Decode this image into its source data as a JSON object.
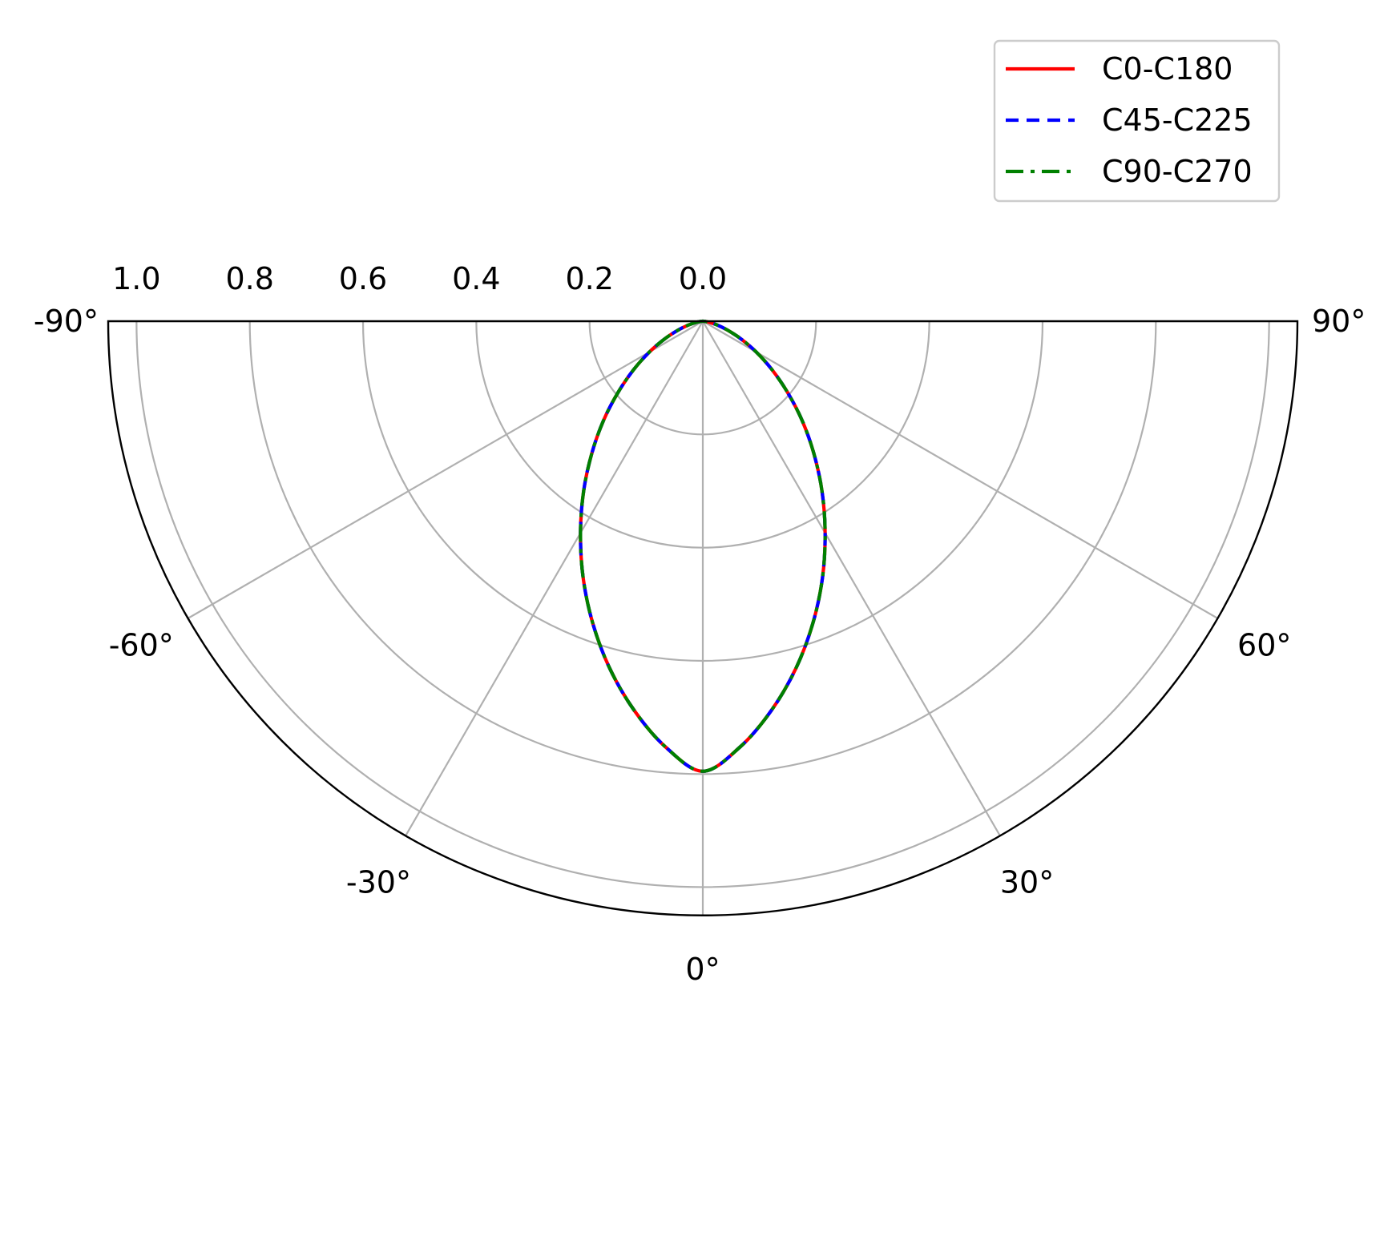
{
  "chart_data": {
    "type": "polar",
    "title": "",
    "theta_range_deg": [
      -90,
      90
    ],
    "theta_zero_location": "bottom",
    "r_range": [
      0,
      1.05
    ],
    "r_ticks": [
      0.0,
      0.2,
      0.4,
      0.6,
      0.8,
      1.0
    ],
    "r_tick_labels": [
      "0.0",
      "0.2",
      "0.4",
      "0.6",
      "0.8",
      "1.0"
    ],
    "theta_ticks_deg": [
      -90,
      -60,
      -30,
      0,
      30,
      60,
      90
    ],
    "theta_tick_labels": [
      "-90°",
      "-60°",
      "-30°",
      "0°",
      "30°",
      "60°",
      "90°"
    ],
    "grid": true,
    "legend": {
      "position": "top-right",
      "entries": [
        "C0-C180",
        "C45-C225",
        "C90-C270"
      ]
    },
    "theta_deg": [
      -90,
      -85,
      -80,
      -75,
      -70,
      -65,
      -60,
      -55,
      -50,
      -45,
      -40,
      -35,
      -30,
      -25,
      -20,
      -15,
      -10,
      -5,
      0,
      5,
      10,
      15,
      20,
      25,
      30,
      35,
      40,
      45,
      50,
      55,
      60,
      65,
      70,
      75,
      80,
      85,
      90
    ],
    "series": [
      {
        "name": "C0-C180",
        "color": "#ff0000",
        "style": "solid",
        "r": [
          0.0,
          0.003,
          0.012,
          0.027,
          0.047,
          0.075,
          0.109,
          0.149,
          0.195,
          0.248,
          0.305,
          0.367,
          0.432,
          0.5,
          0.568,
          0.635,
          0.698,
          0.755,
          0.795,
          0.755,
          0.698,
          0.635,
          0.568,
          0.5,
          0.432,
          0.367,
          0.305,
          0.248,
          0.195,
          0.149,
          0.109,
          0.075,
          0.047,
          0.027,
          0.012,
          0.003,
          0.0
        ]
      },
      {
        "name": "C45-C225",
        "color": "#0000ff",
        "style": "dashed",
        "r": [
          0.0,
          0.003,
          0.012,
          0.027,
          0.047,
          0.075,
          0.109,
          0.149,
          0.195,
          0.248,
          0.305,
          0.367,
          0.432,
          0.5,
          0.568,
          0.635,
          0.698,
          0.755,
          0.795,
          0.755,
          0.698,
          0.635,
          0.568,
          0.5,
          0.432,
          0.367,
          0.305,
          0.248,
          0.195,
          0.149,
          0.109,
          0.075,
          0.047,
          0.027,
          0.012,
          0.003,
          0.0
        ]
      },
      {
        "name": "C90-C270",
        "color": "#008000",
        "style": "dashdot",
        "r": [
          0.0,
          0.003,
          0.012,
          0.027,
          0.047,
          0.075,
          0.109,
          0.149,
          0.195,
          0.248,
          0.305,
          0.367,
          0.432,
          0.5,
          0.568,
          0.635,
          0.698,
          0.755,
          0.795,
          0.755,
          0.698,
          0.635,
          0.568,
          0.5,
          0.432,
          0.367,
          0.305,
          0.248,
          0.195,
          0.149,
          0.109,
          0.075,
          0.047,
          0.027,
          0.012,
          0.003,
          0.0
        ]
      }
    ]
  }
}
